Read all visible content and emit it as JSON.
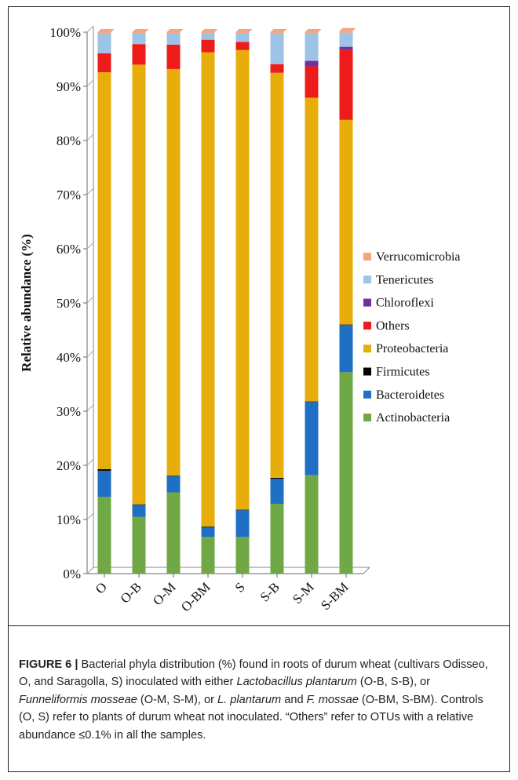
{
  "chart_data": {
    "type": "bar",
    "stacked": true,
    "categories": [
      "O",
      "O-B",
      "O-M",
      "O-BM",
      "S",
      "S-B",
      "S-M",
      "S-BM"
    ],
    "ylabel": "Relative abundance (%)",
    "xlabel": "",
    "ylim": [
      0,
      100
    ],
    "yticks": [
      "0%",
      "10%",
      "20%",
      "30%",
      "40%",
      "50%",
      "60%",
      "70%",
      "80%",
      "90%",
      "100%"
    ],
    "grid": false,
    "legend_position": "right",
    "series": [
      {
        "name": "Actinobacteria",
        "color": "#70a845",
        "values": [
          14.2,
          10.5,
          15.0,
          6.8,
          6.8,
          12.9,
          18.2,
          37.2
        ]
      },
      {
        "name": "Bacteroidetes",
        "color": "#1f6fc4",
        "values": [
          4.8,
          2.2,
          3.0,
          1.8,
          4.9,
          4.6,
          13.5,
          8.7
        ]
      },
      {
        "name": "Firmicutes",
        "color": "#000000",
        "values": [
          0.3,
          0.1,
          0.1,
          0.1,
          0.1,
          0.2,
          0.1,
          0.1
        ]
      },
      {
        "name": "Proteobacteria",
        "color": "#e7ad0b",
        "values": [
          73.3,
          81.2,
          75.1,
          87.6,
          84.9,
          74.8,
          56.1,
          37.8
        ]
      },
      {
        "name": "Others",
        "color": "#ee1b1b",
        "values": [
          3.5,
          3.8,
          4.5,
          2.3,
          1.5,
          1.6,
          5.8,
          12.9
        ]
      },
      {
        "name": "Chloroflexi",
        "color": "#7030a0",
        "values": [
          0.0,
          0.0,
          0.0,
          0.0,
          0.0,
          0.0,
          1.0,
          0.6
        ]
      },
      {
        "name": "Tenericutes",
        "color": "#9dc3e6",
        "values": [
          3.6,
          2.0,
          2.0,
          1.2,
          1.6,
          5.6,
          5.0,
          2.6
        ]
      },
      {
        "name": "Verrucomicrobia",
        "color": "#f4a582",
        "values": [
          0.3,
          0.2,
          0.3,
          0.2,
          0.2,
          0.3,
          0.3,
          0.3
        ]
      }
    ],
    "legend_order": [
      "Verrucomicrobia",
      "Tenericutes",
      "Chloroflexi",
      "Others",
      "Proteobacteria",
      "Firmicutes",
      "Bacteroidetes",
      "Actinobacteria"
    ]
  },
  "caption": {
    "label": "FIGURE 6 |",
    "t1": " Bacterial phyla distribution (%) found in roots of durum wheat (cultivars Odisseo, O, and Saragolla, S) inoculated with either ",
    "i1": "Lactobacillus plantarum",
    "t2": " (O-B, S-B), or ",
    "i2": "Funneliformis mosseae",
    "t3": " (O-M, S-M), or ",
    "i3": "L. plantarum",
    "t4": " and ",
    "i4": "F. mossae",
    "t5": " (O-BM, S-BM). Controls (O, S) refer to plants of durum wheat not inoculated. “Others” refer to OTUs with a relative abundance ≤0.1% in all the samples."
  }
}
